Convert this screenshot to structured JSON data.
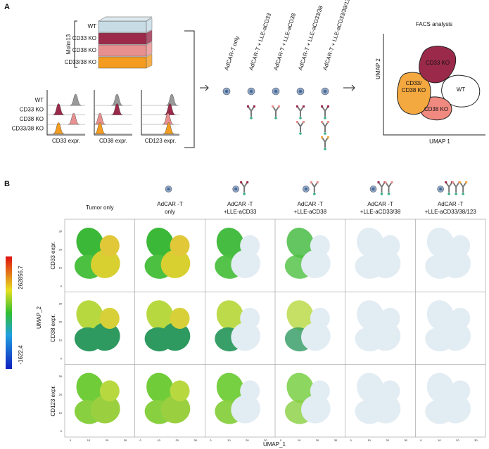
{
  "panel_a": {
    "label": "A",
    "group": "Molm13",
    "cell_lines": [
      "WT",
      "CD33 KO",
      "CD38 KO",
      "CD33/38 KO"
    ],
    "histogram_labels": [
      "CD33 expr.",
      "CD38 expr.",
      "CD123 expr."
    ],
    "conditions": [
      "AdCAR-T only",
      "AdCAR-T + LLE-aCD33",
      "AdCAR-T + LLE-aCD38",
      "AdCAR-T + LLE-aCD33/38",
      "AdCAR-T + LLE-aCD33/38/123"
    ],
    "facs_title": "FACS analysis",
    "umap_y": "UMAP 2",
    "umap_x": "UMAP 1",
    "clusters": [
      [
        "CD33 KO"
      ],
      [
        "CD33/",
        "CD38 KO"
      ],
      [
        "WT"
      ],
      [
        "CD38 KO"
      ]
    ]
  },
  "panel_b": {
    "label": "B",
    "columns": [
      [
        "Tumor only"
      ],
      [
        "AdCAR -T",
        "only"
      ],
      [
        "AdCAR -T",
        "+LLE-aCD33"
      ],
      [
        "AdCAR -T",
        "+LLE-aCD38"
      ],
      [
        "AdCAR -T",
        "+LLE-aCD33/38"
      ],
      [
        "AdCAR -T",
        "+LLE-aCD33/38/123"
      ]
    ],
    "rows": [
      "CD33 expr.",
      "CD38 expr.",
      "CD123 expr."
    ],
    "colorbar_max": "262856,7",
    "colorbar_min": "-1622,4",
    "y_axis": "UMAP_2",
    "x_axis": "UMAP_1",
    "axis_ticks": [
      "0",
      "10",
      "20",
      "30"
    ]
  }
}
